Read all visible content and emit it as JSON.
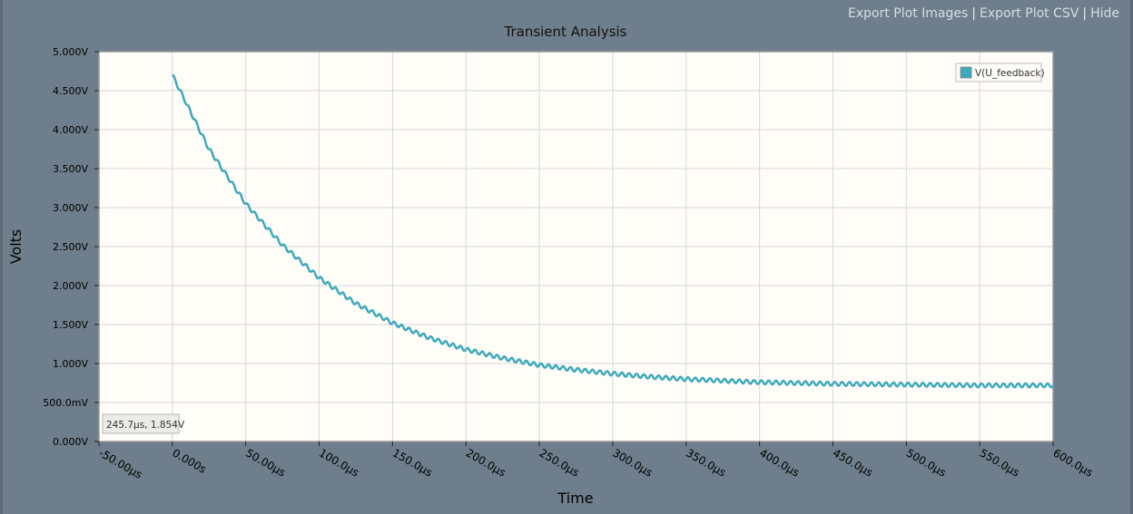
{
  "links": {
    "export_images": "Export Plot Images",
    "export_csv": "Export Plot CSV",
    "hide": "Hide",
    "separator": "|"
  },
  "tooltip": "245.7µs, 1.854V",
  "chart_data": {
    "type": "line",
    "title": "Transient Analysis",
    "xlabel": "Time",
    "ylabel": "Volts",
    "xlim": [
      -50,
      600
    ],
    "ylim": [
      0,
      5
    ],
    "x_unit": "µs",
    "xticks": [
      -50,
      0,
      50,
      100,
      150,
      200,
      250,
      300,
      350,
      400,
      450,
      500,
      550,
      600
    ],
    "xtick_labels": [
      "-50.00µs",
      "0.000s",
      "50.00µs",
      "100.0µs",
      "150.0µs",
      "200.0µs",
      "250.0µs",
      "300.0µs",
      "350.0µs",
      "400.0µs",
      "450.0µs",
      "500.0µs",
      "550.0µs",
      "600.0µs"
    ],
    "yticks": [
      0,
      0.5,
      1,
      1.5,
      2,
      2.5,
      3,
      3.5,
      4,
      4.5,
      5
    ],
    "ytick_labels": [
      "0.000V",
      "500.0mV",
      "1.000V",
      "1.500V",
      "2.000V",
      "2.500V",
      "3.000V",
      "3.500V",
      "4.000V",
      "4.500V",
      "5.000V"
    ],
    "grid": true,
    "legend_position": "top-right",
    "series": [
      {
        "name": "V(U_feedback)",
        "color": "#3fa9bd",
        "x": [
          0,
          25,
          50,
          75,
          100,
          125,
          150,
          175,
          200,
          225,
          250,
          275,
          300,
          325,
          350,
          375,
          400,
          425,
          450,
          475,
          500,
          525,
          550,
          575,
          600
        ],
        "values": [
          4.7,
          3.75,
          3.05,
          2.52,
          2.1,
          1.77,
          1.52,
          1.33,
          1.18,
          1.07,
          0.98,
          0.92,
          0.87,
          0.83,
          0.8,
          0.78,
          0.76,
          0.75,
          0.74,
          0.735,
          0.73,
          0.725,
          0.72,
          0.72,
          0.72
        ],
        "ripple_amplitude": 0.025,
        "ripple_period": 5
      }
    ]
  }
}
